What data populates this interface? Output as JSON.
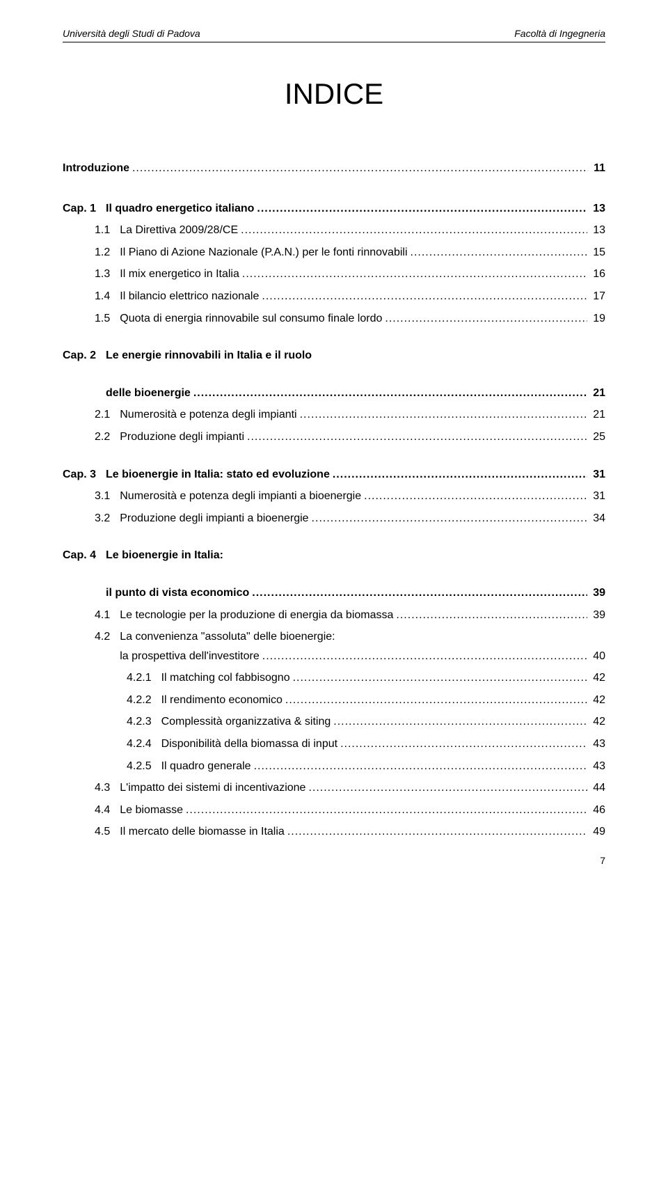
{
  "header": {
    "left": "Università degli Studi di Padova",
    "right": "Facoltà di Ingegneria"
  },
  "title": "INDICE",
  "intro": {
    "label": "Introduzione",
    "page": "11"
  },
  "chapters": [
    {
      "num": "Cap. 1",
      "label": "Il quadro energetico italiano",
      "page": "13",
      "items": [
        {
          "num": "1.1",
          "label": "La Direttiva 2009/28/CE",
          "page": "13"
        },
        {
          "num": "1.2",
          "label": "Il Piano di Azione Nazionale (P.A.N.) per le fonti rinnovabili",
          "page": "15"
        },
        {
          "num": "1.3",
          "label": "Il mix energetico in Italia",
          "page": "16"
        },
        {
          "num": "1.4",
          "label": "Il bilancio elettrico nazionale",
          "page": "17"
        },
        {
          "num": "1.5",
          "label": "Quota di energia rinnovabile sul consumo finale lordo",
          "page": "19"
        }
      ]
    },
    {
      "num": "Cap. 2",
      "label": "Le energie rinnovabili in Italia e il ruolo\ndelle bioenergie",
      "page": "21",
      "items": [
        {
          "num": "2.1",
          "label": "Numerosità e potenza degli impianti",
          "page": "21"
        },
        {
          "num": "2.2",
          "label": "Produzione degli impianti",
          "page": "25"
        }
      ]
    },
    {
      "num": "Cap. 3",
      "label": "Le bioenergie in Italia: stato ed evoluzione",
      "page": "31",
      "items": [
        {
          "num": "3.1",
          "label": "Numerosità e potenza degli impianti a bioenergie",
          "page": "31"
        },
        {
          "num": "3.2",
          "label": "Produzione degli impianti a bioenergie",
          "page": "34"
        }
      ]
    },
    {
      "num": "Cap. 4",
      "label": "Le bioenergie in Italia:\nil punto di vista economico",
      "page": "39",
      "items": [
        {
          "num": "4.1",
          "label": "Le tecnologie per la produzione di energia da biomassa",
          "page": "39"
        },
        {
          "num": "4.2",
          "label": "La convenienza \"assoluta\" delle bioenergie:\nla prospettiva dell'investitore",
          "page": "40",
          "subitems": [
            {
              "num": "4.2.1",
              "label": "Il matching col fabbisogno",
              "page": "42"
            },
            {
              "num": "4.2.2",
              "label": "Il rendimento economico",
              "page": "42"
            },
            {
              "num": "4.2.3",
              "label": "Complessità organizzativa & siting",
              "page": "42"
            },
            {
              "num": "4.2.4",
              "label": "Disponibilità della biomassa di input",
              "page": "43"
            },
            {
              "num": "4.2.5",
              "label": "Il quadro generale",
              "page": "43"
            }
          ]
        },
        {
          "num": "4.3",
          "label": "L'impatto dei sistemi di incentivazione",
          "page": "44"
        },
        {
          "num": "4.4",
          "label": "Le biomasse",
          "page": "46"
        },
        {
          "num": "4.5",
          "label": "Il mercato delle biomasse in Italia",
          "page": "49"
        }
      ]
    }
  ],
  "page_number": "7"
}
